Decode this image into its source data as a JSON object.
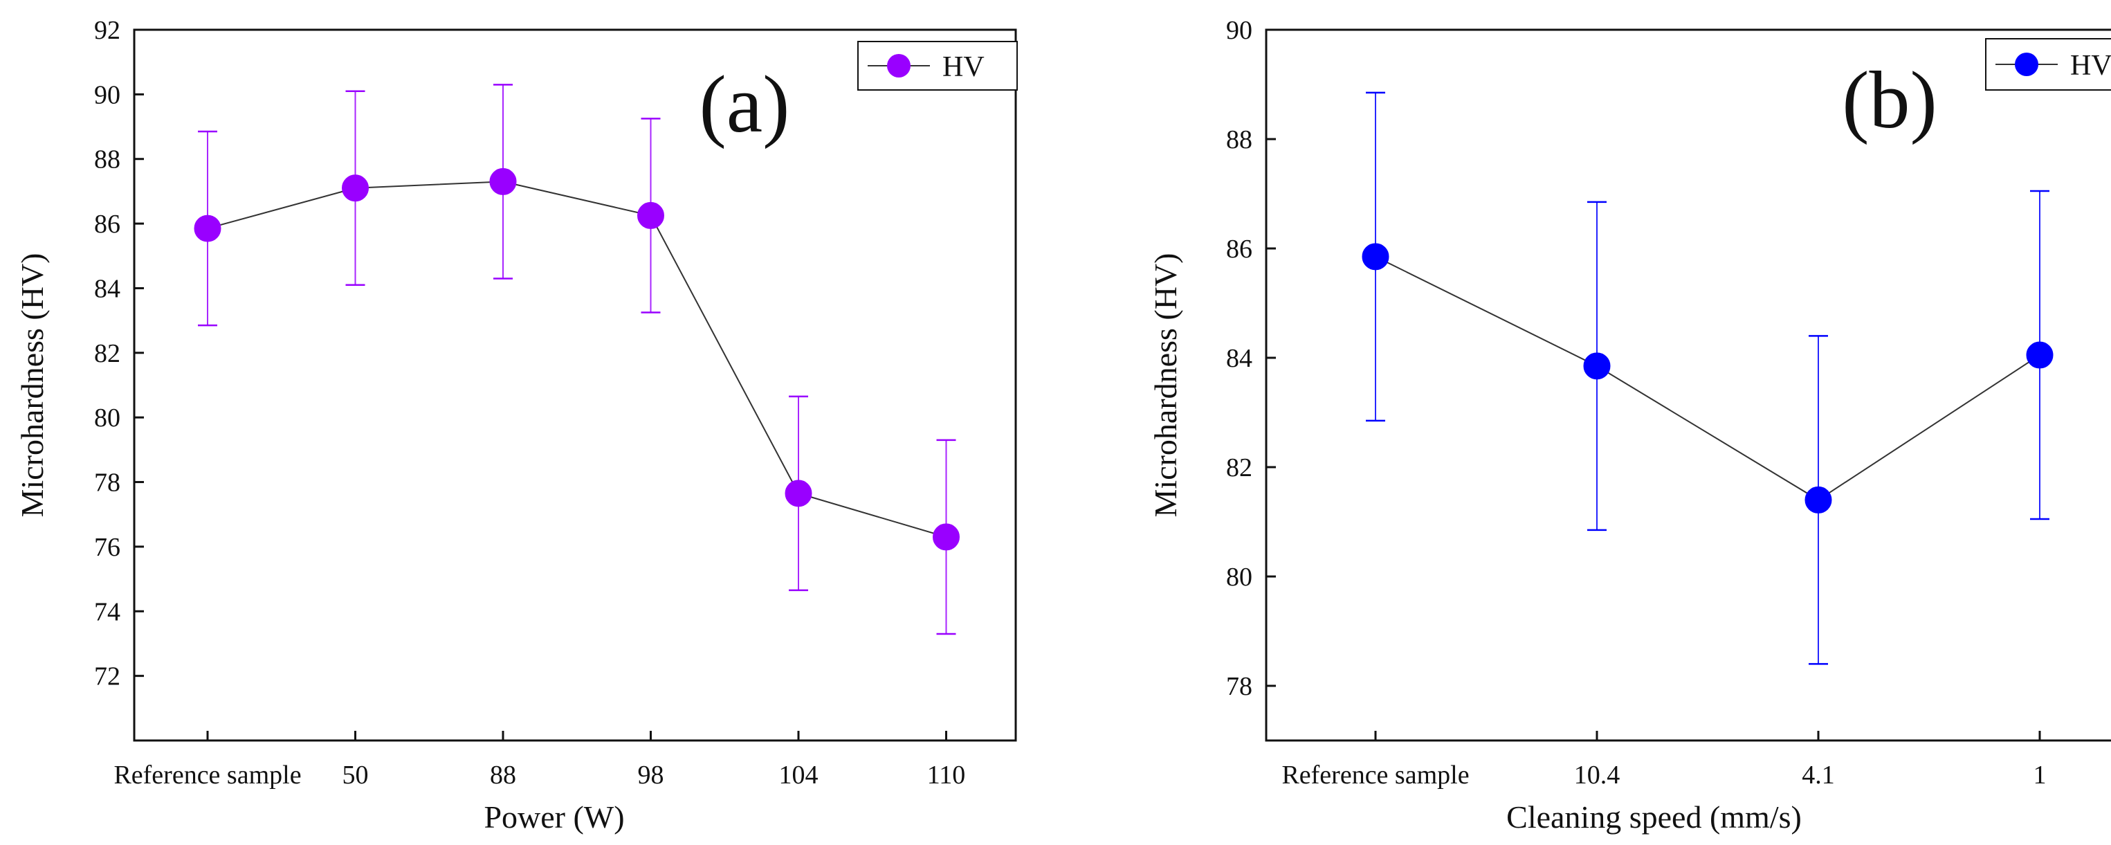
{
  "chart_data": [
    {
      "type": "line",
      "panel_label": "(a)",
      "xlabel": "Power (W)",
      "ylabel": "Microhardness (HV)",
      "categories": [
        "Reference sample",
        "50",
        "88",
        "98",
        "104",
        "110"
      ],
      "ylim": [
        70,
        92
      ],
      "yticks": [
        "72",
        "74",
        "76",
        "78",
        "80",
        "82",
        "84",
        "86",
        "88",
        "90",
        "92"
      ],
      "legend": {
        "label": "HV",
        "placement": "top-right"
      },
      "color": "#9900ff",
      "series": [
        {
          "name": "HV",
          "values": [
            85.85,
            87.1,
            87.3,
            86.25,
            77.65,
            76.3
          ],
          "error": [
            3.0,
            3.0,
            3.0,
            3.0,
            3.0,
            3.0
          ]
        }
      ]
    },
    {
      "type": "line",
      "panel_label": "(b)",
      "xlabel": "Cleaning speed (mm/s)",
      "ylabel": "Microhardness (HV)",
      "categories": [
        "Reference sample",
        "10.4",
        "4.1",
        "1"
      ],
      "ylim": [
        77,
        90
      ],
      "yticks": [
        "78",
        "80",
        "82",
        "84",
        "86",
        "88",
        "90"
      ],
      "legend": {
        "label": "HV",
        "placement": "top-right"
      },
      "color": "#0000ff",
      "series": [
        {
          "name": "HV",
          "values": [
            85.85,
            83.85,
            81.4,
            84.05
          ],
          "error": [
            3.0,
            3.0,
            3.0,
            3.0
          ]
        }
      ]
    }
  ]
}
